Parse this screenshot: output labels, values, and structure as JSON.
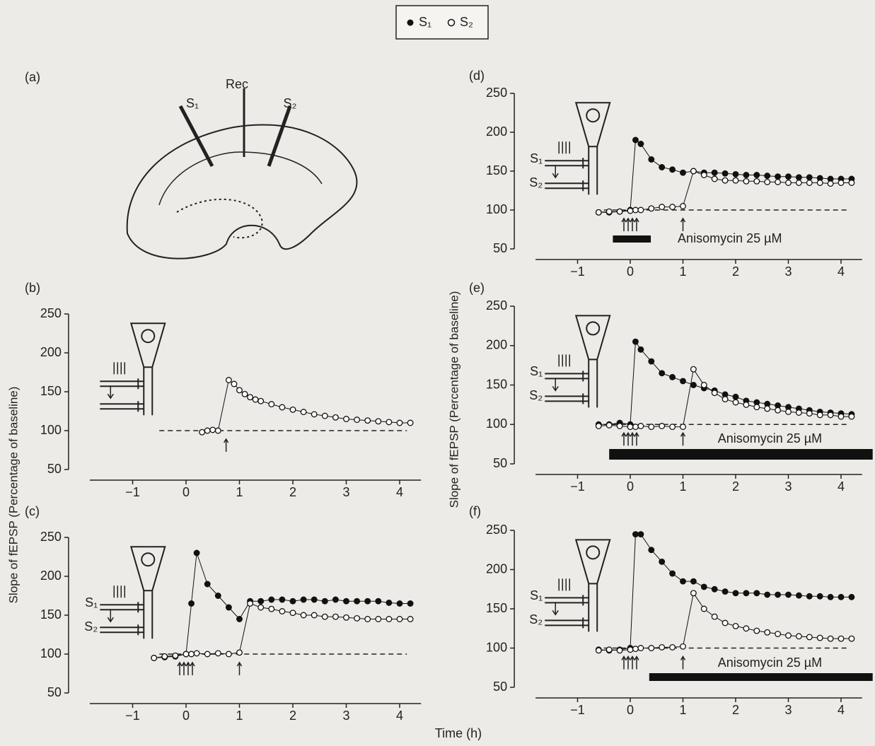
{
  "diagram": {
    "label": "(a)",
    "s1": "S₁",
    "s2": "S₂",
    "rec": "Rec"
  },
  "y_axis_label": "Slope of fEPSP (Percentage of baseline)",
  "x_axis_label": "Time (h)",
  "chart_data": [
    {
      "type": "line",
      "label": "(b)",
      "x": [
        0.3,
        0.4,
        0.5,
        0.6,
        0.8,
        0.9,
        1.0,
        1.1,
        1.2,
        1.3,
        1.4,
        1.6,
        1.8,
        2.0,
        2.2,
        2.4,
        2.6,
        2.8,
        3.0,
        3.2,
        3.4,
        3.6,
        3.8,
        4.0,
        4.2
      ],
      "values": [
        98,
        100,
        101,
        100,
        165,
        160,
        152,
        147,
        143,
        140,
        138,
        134,
        130,
        127,
        124,
        121,
        119,
        117,
        115,
        114,
        113,
        112,
        111,
        110,
        110
      ],
      "color": "#111111",
      "marker": "open",
      "xlim": [
        -2.2,
        4.4
      ],
      "xticks": [
        {
          "value": -1,
          "label": "−1"
        },
        0,
        1,
        2,
        3,
        4
      ],
      "ylim": [
        50,
        250
      ],
      "yticks": [
        50,
        100,
        150,
        200,
        250
      ],
      "hline": 100
    },
    {
      "type": "line",
      "label": "(c)",
      "x": [
        -0.6,
        -0.4,
        -0.2,
        0,
        0.1,
        0.2,
        0.4,
        0.6,
        0.8,
        1.0,
        1.2,
        1.4,
        1.6,
        1.8,
        2.0,
        2.2,
        2.4,
        2.6,
        2.8,
        3.0,
        3.2,
        3.4,
        3.6,
        3.8,
        4.0,
        4.2
      ],
      "series": [
        {
          "name": "S₁",
          "color": "#111111",
          "marker": "filled",
          "values": [
            95,
            96,
            97,
            100,
            165,
            230,
            190,
            175,
            160,
            145,
            168,
            168,
            170,
            170,
            168,
            170,
            170,
            168,
            170,
            168,
            168,
            168,
            168,
            166,
            165,
            165
          ]
        },
        {
          "name": "S₂",
          "color": "#111111",
          "marker": "open",
          "values": [
            95,
            97,
            98,
            100,
            100,
            101,
            100,
            101,
            100,
            102,
            165,
            160,
            158,
            155,
            153,
            150,
            150,
            148,
            148,
            147,
            146,
            145,
            145,
            145,
            145,
            145
          ]
        }
      ],
      "inset_labels": [
        "S₁",
        "S₂"
      ],
      "xlim": [
        -2.2,
        4.4
      ],
      "xticks": [
        {
          "value": -1,
          "label": "−1"
        },
        0,
        1,
        2,
        3,
        4
      ],
      "ylim": [
        50,
        250
      ],
      "yticks": [
        50,
        100,
        150,
        200,
        250
      ],
      "hline": 100
    },
    {
      "type": "line",
      "label": "(d)",
      "x": [
        -0.6,
        -0.4,
        -0.2,
        0,
        0.1,
        0.2,
        0.4,
        0.6,
        0.8,
        1.0,
        1.2,
        1.4,
        1.6,
        1.8,
        2.0,
        2.2,
        2.4,
        2.6,
        2.8,
        3.0,
        3.2,
        3.4,
        3.6,
        3.8,
        4.0,
        4.2
      ],
      "series": [
        {
          "name": "S₁",
          "color": "#111111",
          "marker": "filled",
          "values": [
            97,
            97,
            98,
            100,
            190,
            185,
            165,
            155,
            152,
            148,
            150,
            148,
            148,
            147,
            146,
            145,
            145,
            144,
            143,
            143,
            142,
            142,
            141,
            140,
            140,
            140
          ]
        },
        {
          "name": "S₂",
          "color": "#111111",
          "marker": "open",
          "values": [
            97,
            98,
            98,
            99,
            100,
            100,
            102,
            104,
            104,
            105,
            150,
            145,
            140,
            138,
            138,
            137,
            137,
            136,
            136,
            135,
            135,
            135,
            135,
            134,
            135,
            135
          ]
        }
      ],
      "inset_labels": [
        "S₁",
        "S₂"
      ],
      "drug": {
        "label": "Anisomycin 25 µM",
        "start": -0.33,
        "end": 0.39
      },
      "xlim": [
        -2.2,
        4.4
      ],
      "xticks": [
        {
          "value": -1,
          "label": "−1"
        },
        0,
        1,
        2,
        3,
        4
      ],
      "ylim": [
        50,
        250
      ],
      "yticks": [
        50,
        100,
        150,
        200,
        250
      ],
      "hline": 100
    },
    {
      "type": "line",
      "label": "(e)",
      "x": [
        -0.6,
        -0.4,
        -0.2,
        0,
        0.1,
        0.2,
        0.4,
        0.6,
        0.8,
        1.0,
        1.2,
        1.4,
        1.6,
        1.8,
        2.0,
        2.2,
        2.4,
        2.6,
        2.8,
        3.0,
        3.2,
        3.4,
        3.6,
        3.8,
        4.0,
        4.2
      ],
      "series": [
        {
          "name": "S₁",
          "color": "#111111",
          "marker": "filled",
          "values": [
            100,
            100,
            102,
            100,
            205,
            195,
            180,
            165,
            160,
            155,
            150,
            146,
            143,
            138,
            135,
            130,
            128,
            126,
            124,
            122,
            120,
            118,
            116,
            115,
            114,
            113
          ]
        },
        {
          "name": "S₂",
          "color": "#111111",
          "marker": "open",
          "values": [
            98,
            99,
            98,
            97,
            97,
            98,
            97,
            98,
            97,
            97,
            170,
            150,
            140,
            132,
            128,
            125,
            122,
            120,
            118,
            116,
            115,
            114,
            112,
            112,
            110,
            110
          ]
        }
      ],
      "inset_labels": [
        "S₁",
        "S₂"
      ],
      "drug": {
        "label": "Anisomycin 25 µM",
        "start": -0.4,
        "end": 4.6
      },
      "xlim": [
        -2.2,
        4.4
      ],
      "xticks": [
        {
          "value": -1,
          "label": "−1"
        },
        0,
        1,
        2,
        3,
        4
      ],
      "ylim": [
        50,
        250
      ],
      "yticks": [
        50,
        100,
        150,
        200,
        250
      ],
      "hline": 100
    },
    {
      "type": "line",
      "label": "(f)",
      "x": [
        -0.6,
        -0.4,
        -0.2,
        0,
        0.1,
        0.2,
        0.4,
        0.6,
        0.8,
        1.0,
        1.2,
        1.4,
        1.6,
        1.8,
        2.0,
        2.2,
        2.4,
        2.6,
        2.8,
        3.0,
        3.2,
        3.4,
        3.6,
        3.8,
        4.0,
        4.2
      ],
      "series": [
        {
          "name": "S₁",
          "color": "#111111",
          "marker": "filled",
          "values": [
            98,
            97,
            98,
            100,
            245,
            245,
            225,
            210,
            195,
            185,
            185,
            178,
            175,
            172,
            170,
            170,
            170,
            168,
            168,
            168,
            167,
            166,
            166,
            165,
            165,
            165
          ]
        },
        {
          "name": "S₂",
          "color": "#111111",
          "marker": "open",
          "values": [
            97,
            98,
            97,
            98,
            99,
            100,
            100,
            101,
            101,
            102,
            170,
            150,
            140,
            132,
            128,
            125,
            122,
            120,
            118,
            116,
            115,
            114,
            113,
            112,
            112,
            112
          ]
        }
      ],
      "inset_labels": [
        "S₁",
        "S₂"
      ],
      "drug": {
        "label": "Anisomycin 25 µM",
        "start": 0.36,
        "end": 4.6
      },
      "xlim": [
        -2.2,
        4.4
      ],
      "xticks": [
        {
          "value": -1,
          "label": "−1"
        },
        0,
        1,
        2,
        3,
        4
      ],
      "ylim": [
        50,
        250
      ],
      "yticks": [
        50,
        100,
        150,
        200,
        250
      ],
      "hline": 100
    }
  ]
}
